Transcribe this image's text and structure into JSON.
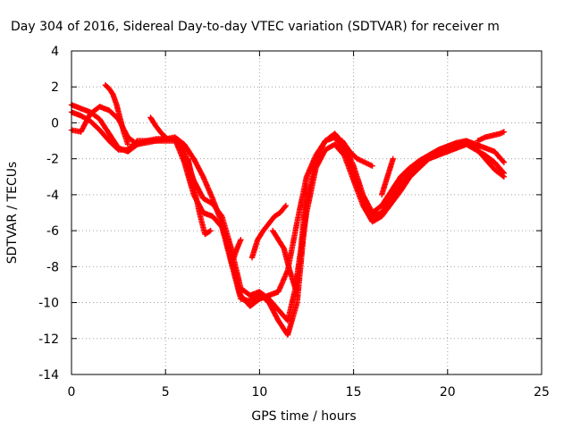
{
  "chart_data": {
    "type": "scatter",
    "title": "Day 304 of 2016, Sidereal Day-to-day VTEC variation (SDTVAR) for receiver m",
    "xlabel": "GPS time / hours",
    "ylabel": "SDTVAR / TECUs",
    "xlim": [
      0,
      25
    ],
    "ylim": [
      -14,
      4
    ],
    "xticks": [
      "0",
      "5",
      "10",
      "15",
      "20",
      "25"
    ],
    "yticks": [
      "4",
      "2",
      "0",
      "-2",
      "-4",
      "-6",
      "-8",
      "-10",
      "-12",
      "-14"
    ],
    "grid": true,
    "marker": "+",
    "color": "#ff0000",
    "series": [
      {
        "x": [
          0.0,
          0.5,
          1.0,
          1.5,
          2.0,
          2.5,
          3.0,
          3.5,
          4.0,
          4.5,
          5.0,
          5.5,
          6.0,
          6.5,
          7.0,
          7.5,
          8.0,
          8.5,
          9.0,
          9.5,
          10.0,
          10.5,
          11.0,
          11.5,
          12.0,
          12.5,
          13.0,
          13.5,
          14.0,
          14.5,
          15.0,
          15.5,
          16.0,
          16.5,
          17.0,
          17.5,
          18.0,
          18.5,
          19.0,
          19.5,
          20.0,
          20.5,
          21.0,
          21.5,
          22.0,
          22.5,
          23.0
        ],
        "y": [
          1.0,
          0.8,
          0.6,
          0.2,
          -0.6,
          -1.4,
          -1.6,
          -1.2,
          -1.0,
          -0.9,
          -0.9,
          -0.8,
          -1.2,
          -2.0,
          -3.0,
          -4.2,
          -5.6,
          -7.6,
          -9.6,
          -10.2,
          -9.8,
          -9.6,
          -9.4,
          -8.2,
          -5.5,
          -3.0,
          -1.8,
          -1.0,
          -0.8,
          -1.5,
          -2.8,
          -4.2,
          -5.2,
          -5.0,
          -4.2,
          -3.4,
          -2.8,
          -2.3,
          -1.9,
          -1.6,
          -1.3,
          -1.1,
          -1.0,
          -1.2,
          -1.4,
          -1.6,
          -2.2
        ]
      },
      {
        "x": [
          0.0,
          0.5,
          1.0,
          1.5,
          2.0,
          2.5,
          3.0,
          3.5,
          4.0,
          4.5,
          5.0,
          5.5,
          6.0,
          6.5,
          7.0,
          7.5,
          8.0,
          8.5,
          9.0,
          9.5,
          10.0,
          10.5,
          11.0,
          11.5,
          12.0,
          12.5,
          13.0,
          13.5,
          14.0,
          14.5,
          15.0,
          15.5,
          16.0,
          16.5,
          17.0,
          17.5,
          18.0,
          18.5,
          19.0,
          19.5,
          20.0,
          20.5,
          21.0,
          21.5,
          22.0,
          22.5,
          23.0
        ],
        "y": [
          0.6,
          0.4,
          0.1,
          -0.4,
          -1.0,
          -1.5,
          -1.5,
          -1.0,
          -1.0,
          -1.0,
          -1.0,
          -1.0,
          -1.6,
          -3.2,
          -4.2,
          -4.5,
          -5.2,
          -7.0,
          -9.2,
          -9.6,
          -9.4,
          -9.8,
          -10.4,
          -11.0,
          -8.8,
          -5.0,
          -2.5,
          -1.5,
          -1.2,
          -1.8,
          -3.2,
          -4.6,
          -5.5,
          -5.2,
          -4.5,
          -3.8,
          -3.0,
          -2.5,
          -2.0,
          -1.8,
          -1.6,
          -1.4,
          -1.2,
          -1.5,
          -1.8,
          -2.2,
          -2.8
        ]
      },
      {
        "x": [
          0.0,
          0.5,
          1.0,
          1.5,
          2.0,
          2.5,
          3.0,
          3.5,
          4.0,
          4.5,
          5.0,
          5.5,
          6.0,
          6.5,
          7.0,
          7.5,
          8.0,
          8.5,
          9.0,
          9.5,
          10.0,
          10.5,
          11.0,
          11.5,
          12.0,
          12.5,
          13.0,
          13.5,
          14.0,
          14.5,
          15.0,
          15.5,
          16.0,
          16.5,
          17.0,
          17.5,
          18.0,
          18.5,
          19.0,
          19.5,
          20.0,
          20.5,
          21.0,
          21.5,
          22.0,
          22.5,
          23.0
        ],
        "y": [
          -0.4,
          -0.5,
          0.5,
          0.9,
          0.7,
          0.2,
          -0.8,
          -1.2,
          -1.1,
          -1.0,
          -0.9,
          -0.9,
          -2.2,
          -4.0,
          -5.0,
          -5.2,
          -5.8,
          -7.8,
          -9.8,
          -9.9,
          -9.5,
          -10.0,
          -11.0,
          -11.8,
          -10.0,
          -4.5,
          -2.0,
          -1.0,
          -0.6,
          -1.2,
          -2.4,
          -4.0,
          -5.0,
          -4.6,
          -3.8,
          -3.0,
          -2.5,
          -2.1,
          -1.8,
          -1.5,
          -1.3,
          -1.2,
          -1.0,
          -1.4,
          -2.0,
          -2.6,
          -3.0
        ]
      },
      {
        "x": [
          1.8,
          2.0,
          2.2,
          2.4,
          2.6,
          2.8,
          3.0
        ],
        "y": [
          2.1,
          1.9,
          1.6,
          1.0,
          0.2,
          -0.6,
          -1.2
        ]
      },
      {
        "x": [
          4.2,
          4.5,
          4.8,
          5.1
        ],
        "y": [
          0.3,
          -0.2,
          -0.6,
          -0.9
        ]
      },
      {
        "x": [
          6.2,
          6.5,
          6.8,
          7.1,
          7.4
        ],
        "y": [
          -2.0,
          -3.5,
          -5.0,
          -6.2,
          -6.0
        ]
      },
      {
        "x": [
          9.6,
          9.9,
          10.2,
          10.5,
          10.8,
          11.1,
          11.4
        ],
        "y": [
          -7.5,
          -6.5,
          -6.0,
          -5.6,
          -5.2,
          -5.0,
          -4.6
        ]
      },
      {
        "x": [
          8.6,
          8.8,
          9.0
        ],
        "y": [
          -7.6,
          -7.0,
          -6.5
        ]
      },
      {
        "x": [
          10.7,
          11.0,
          11.3,
          11.6,
          11.9,
          12.2,
          12.5
        ],
        "y": [
          -6.0,
          -6.5,
          -7.0,
          -8.2,
          -9.2,
          -7.0,
          -3.5
        ]
      },
      {
        "x": [
          14.4,
          14.8,
          15.2,
          15.6,
          16.0
        ],
        "y": [
          -1.0,
          -1.6,
          -2.0,
          -2.2,
          -2.4
        ]
      },
      {
        "x": [
          16.5,
          16.8,
          17.1
        ],
        "y": [
          -4.0,
          -3.0,
          -2.0
        ]
      },
      {
        "x": [
          21.6,
          22.0,
          22.4,
          22.8,
          23.0
        ],
        "y": [
          -1.0,
          -0.8,
          -0.7,
          -0.6,
          -0.5
        ]
      }
    ]
  }
}
